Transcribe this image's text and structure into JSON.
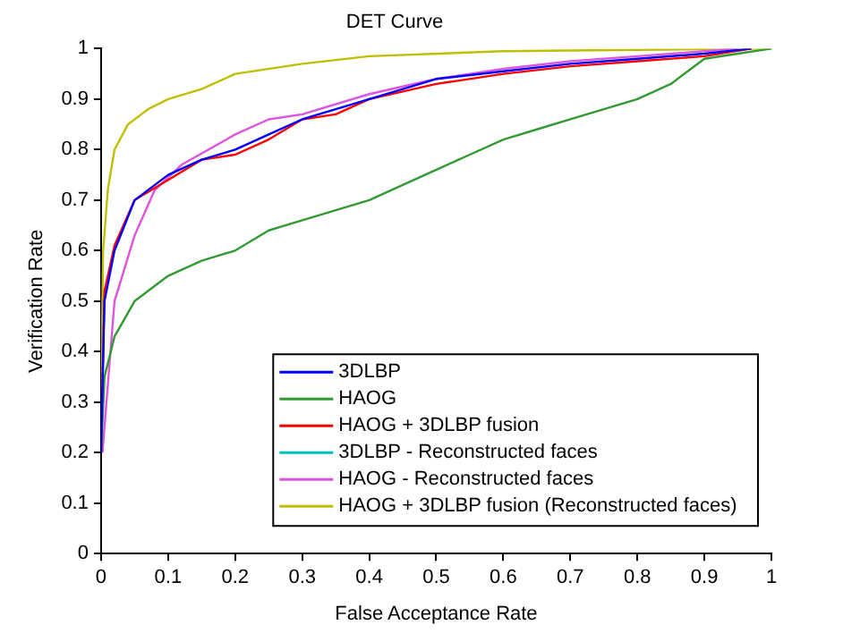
{
  "chart_data": {
    "type": "line",
    "title": "DET Curve",
    "xlabel": "False Acceptance Rate",
    "ylabel": "Verification Rate",
    "xlim": [
      0,
      1
    ],
    "ylim": [
      0,
      1
    ],
    "xticks": [
      0,
      0.1,
      0.2,
      0.3,
      0.4,
      0.5,
      0.6,
      0.7,
      0.8,
      0.9,
      1
    ],
    "yticks": [
      0,
      0.1,
      0.2,
      0.3,
      0.4,
      0.5,
      0.6,
      0.7,
      0.8,
      0.9,
      1
    ],
    "grid": false,
    "legend": "bottom right",
    "marker": "none",
    "line_style": "solid",
    "series": [
      {
        "name": "3DLBP",
        "color": "#0000ff",
        "x": [
          0,
          0.005,
          0.02,
          0.05,
          0.1,
          0.15,
          0.2,
          0.25,
          0.3,
          0.35,
          0.4,
          0.5,
          0.6,
          0.7,
          0.8,
          0.9,
          0.97
        ],
        "values": [
          0.2,
          0.5,
          0.6,
          0.7,
          0.75,
          0.78,
          0.8,
          0.83,
          0.86,
          0.88,
          0.9,
          0.94,
          0.955,
          0.97,
          0.98,
          0.99,
          1
        ]
      },
      {
        "name": "HAOG",
        "color": "#339933",
        "x": [
          0,
          0.005,
          0.02,
          0.05,
          0.1,
          0.15,
          0.2,
          0.25,
          0.3,
          0.35,
          0.4,
          0.45,
          0.5,
          0.55,
          0.6,
          0.65,
          0.7,
          0.75,
          0.8,
          0.85,
          0.88,
          0.9,
          0.95,
          1
        ],
        "values": [
          0.2,
          0.35,
          0.43,
          0.5,
          0.55,
          0.58,
          0.6,
          0.64,
          0.66,
          0.68,
          0.7,
          0.73,
          0.76,
          0.79,
          0.82,
          0.84,
          0.86,
          0.88,
          0.9,
          0.93,
          0.96,
          0.98,
          0.99,
          1
        ]
      },
      {
        "name": "HAOG + 3DLBP fusion",
        "color": "#ff0000",
        "x": [
          0,
          0.005,
          0.02,
          0.05,
          0.1,
          0.15,
          0.2,
          0.25,
          0.3,
          0.35,
          0.4,
          0.5,
          0.6,
          0.7,
          0.8,
          0.9,
          0.97
        ],
        "values": [
          0.2,
          0.52,
          0.61,
          0.7,
          0.74,
          0.78,
          0.79,
          0.82,
          0.86,
          0.87,
          0.9,
          0.93,
          0.95,
          0.965,
          0.975,
          0.985,
          1
        ]
      },
      {
        "name": "3DLBP - Reconstructed faces",
        "color": "#00bfbf"
      },
      {
        "name": "HAOG - Reconstructed faces",
        "color": "#dd55dd",
        "x": [
          0.002,
          0.02,
          0.05,
          0.08,
          0.12,
          0.2,
          0.25,
          0.3,
          0.4,
          0.5,
          0.6,
          0.7,
          0.8,
          0.9,
          0.95
        ],
        "values": [
          0.2,
          0.5,
          0.63,
          0.72,
          0.77,
          0.83,
          0.86,
          0.87,
          0.91,
          0.94,
          0.96,
          0.975,
          0.985,
          0.995,
          1
        ]
      },
      {
        "name": "HAOG + 3DLBP fusion (Reconstructed faces)",
        "color": "#bfbf00",
        "x": [
          0,
          0.003,
          0.01,
          0.02,
          0.04,
          0.07,
          0.1,
          0.15,
          0.2,
          0.3,
          0.4,
          0.6,
          1
        ],
        "values": [
          0.3,
          0.6,
          0.72,
          0.8,
          0.85,
          0.88,
          0.9,
          0.92,
          0.95,
          0.97,
          0.985,
          0.995,
          1
        ]
      }
    ]
  }
}
